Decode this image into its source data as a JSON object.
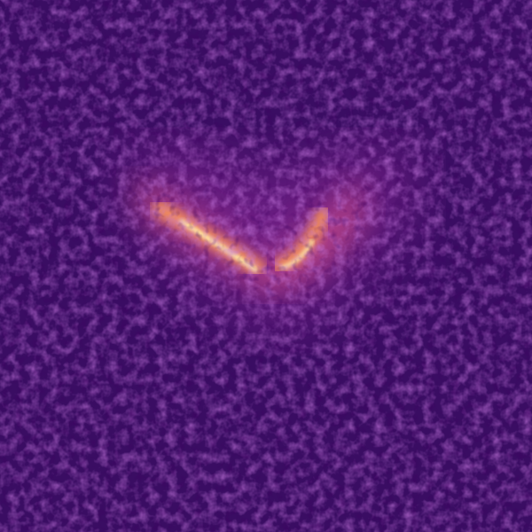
{
  "colors": {
    "background": "#3a0d63",
    "background_deep": "#1a0433",
    "halo": "#9a2fa0",
    "glow": "#e0568a",
    "band": "#ff9b5a",
    "core": "#ffe8a8"
  }
}
